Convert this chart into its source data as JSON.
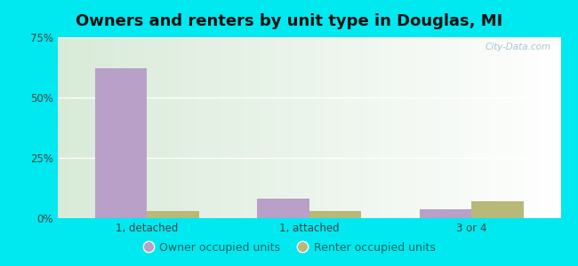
{
  "title": "Owners and renters by unit type in Douglas, MI",
  "categories": [
    "1, detached",
    "1, attached",
    "3 or 4"
  ],
  "owner_values": [
    62,
    8,
    3.5
  ],
  "renter_values": [
    3,
    3,
    7
  ],
  "owner_color": "#b8a0c8",
  "renter_color": "#b8b878",
  "ylim": [
    0,
    75
  ],
  "yticks": [
    0,
    25,
    50,
    75
  ],
  "ytick_labels": [
    "0%",
    "25%",
    "50%",
    "75%"
  ],
  "bar_width": 0.32,
  "outer_color": "#00e8f0",
  "title_fontsize": 13,
  "tick_fontsize": 8.5,
  "legend_fontsize": 9,
  "legend_labels": [
    "Owner occupied units",
    "Renter occupied units"
  ],
  "watermark": "City-Data.com",
  "bg_left_top": "#d4ecd4",
  "bg_right_bottom": "#f0faf0"
}
